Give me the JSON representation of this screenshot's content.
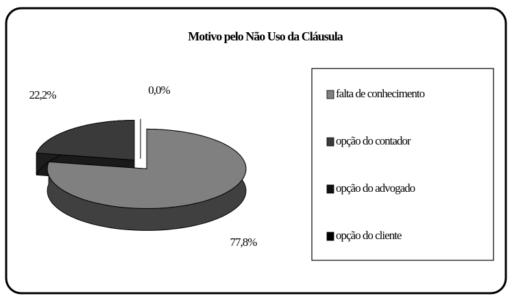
{
  "chart_data": {
    "type": "pie3d",
    "title": "Motivo pelo Não Uso da Cláusula",
    "categories": [
      "falta de conhecimento",
      "opção do contador",
      "opção do advogado",
      "opção do cliente"
    ],
    "values": [
      77.8,
      22.2,
      0,
      0
    ],
    "value_labels": [
      "77,8%",
      "22,2%",
      "0,0%",
      null
    ],
    "colors": [
      "#808080",
      "#3a3a3a",
      "#111111",
      "#000000"
    ],
    "legend": "right"
  }
}
